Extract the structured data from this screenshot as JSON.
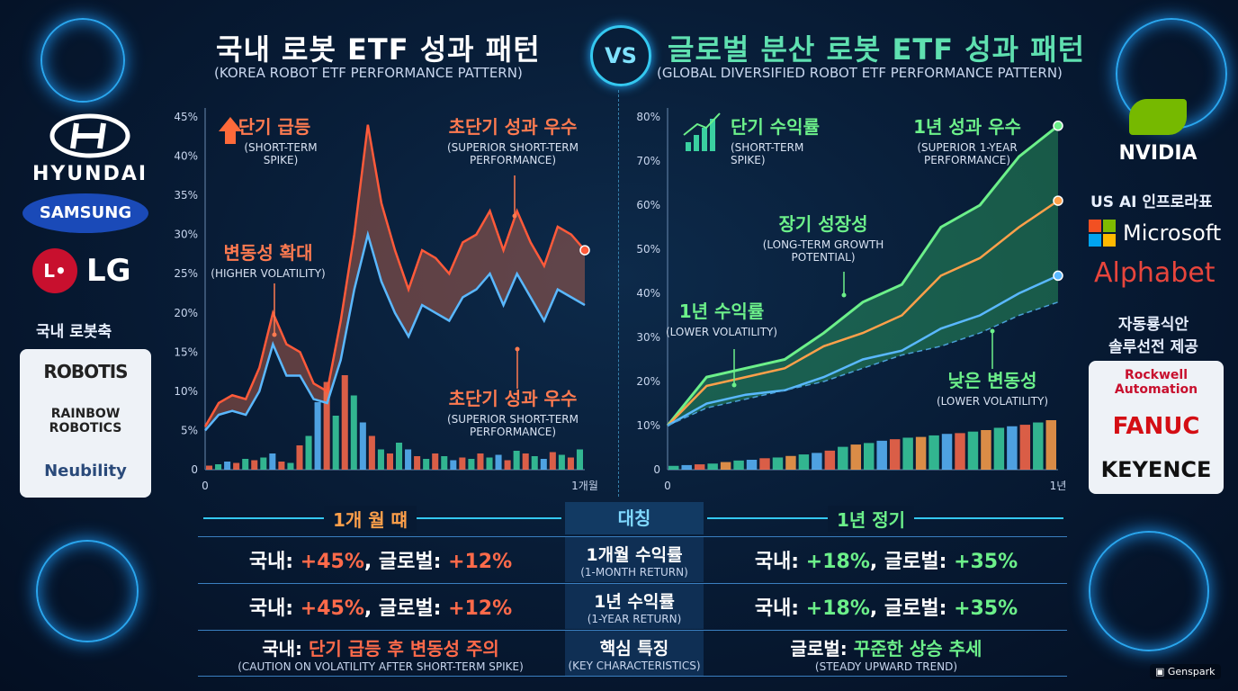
{
  "header": {
    "left_title": "국내 로봇 ETF 성과 패턴",
    "left_subtitle": "(KOREA ROBOT ETF PERFORMANCE PATTERN)",
    "vs": "VS",
    "right_title": "글로벌 분산 로봇 ETF 성과 패턴",
    "right_subtitle": "(GLOBAL DIVERSIFIED ROBOT ETF PERFORMANCE PATTERN)"
  },
  "left_logos": {
    "hyundai": "HYUNDAI",
    "samsung": "SAMSUNG",
    "lg": "LG",
    "group_label": "국내 로봇축",
    "panel": [
      "ROBOTIS",
      "RAINBOW ROBOTICS",
      "Neubility"
    ]
  },
  "right_logos": {
    "nvidia": "NVIDIA",
    "group_label": "US AI 인프로라표",
    "microsoft": "Microsoft",
    "alphabet": "Alphabet",
    "group_label2": "자동룡식안\n솔루선전 제공",
    "panel": [
      "Rockwell Automation",
      "FANUC",
      "KEYENCE"
    ]
  },
  "chart_data": [
    {
      "type": "line",
      "title": "",
      "xlabel": "",
      "ylabel": "",
      "x_tick_labels": [
        "0",
        "1개월"
      ],
      "y_tick_labels": [
        "0",
        "5%",
        "10%",
        "15%",
        "20%",
        "25%",
        "30%",
        "35%",
        "40%",
        "45%"
      ],
      "ylim": [
        0,
        45
      ],
      "grid": false,
      "series": [
        {
          "values": [
            5.5,
            8.5,
            9.5,
            9,
            13,
            20,
            16,
            15,
            11,
            10,
            19,
            30,
            44,
            34,
            28,
            23,
            28,
            27,
            25,
            29,
            30,
            33,
            28,
            33,
            29,
            26,
            31,
            30,
            28
          ]
        },
        {
          "values": [
            5,
            7,
            7.5,
            7,
            10,
            16,
            12,
            12,
            9,
            8.5,
            14,
            23,
            30,
            24,
            20,
            17,
            21,
            20,
            19,
            22,
            23,
            25,
            21,
            25,
            22,
            19,
            23,
            22,
            21
          ]
        }
      ],
      "volume_bars": [
        0.3,
        0.4,
        0.6,
        0.5,
        0.8,
        0.7,
        0.9,
        1.2,
        0.6,
        0.5,
        1.8,
        2.5,
        5,
        6.5,
        4,
        7,
        5.5,
        3.5,
        2.5,
        1.5,
        1.2,
        2,
        1.5,
        1,
        0.8,
        1.2,
        1,
        0.7,
        0.9,
        0.8,
        1.2,
        0.9,
        1.1,
        0.7,
        1.4,
        1.2,
        1,
        0.8,
        1.3,
        1.1,
        0.9,
        1.5
      ],
      "annotations": [
        {
          "title": "단기 급등",
          "sub": "(SHORT-TERM\nSPIKE)"
        },
        {
          "title": "초단기 성과 우수",
          "sub": "(SUPERIOR SHORT-TERM\nPERFORMANCE)"
        },
        {
          "title": "변동성 확대",
          "sub": "(HIGHER VOLATILITY)"
        },
        {
          "title": "초단기 성과 우수",
          "sub": "(SUPERIOR SHORT-TERM\nPERFORMANCE)"
        }
      ]
    },
    {
      "type": "line",
      "title": "",
      "xlabel": "",
      "ylabel": "",
      "x_tick_labels": [
        "0",
        "1년"
      ],
      "y_tick_labels": [
        "0",
        "10%",
        "20%",
        "30%",
        "40%",
        "50%",
        "60%",
        "70%",
        "80%"
      ],
      "ylim": [
        0,
        80
      ],
      "grid": false,
      "series": [
        {
          "values": [
            10,
            21,
            23,
            25,
            31,
            38,
            42,
            55,
            60,
            71,
            78
          ]
        },
        {
          "values": [
            10,
            19,
            21,
            23,
            28,
            31,
            35,
            44,
            48,
            55,
            61
          ]
        },
        {
          "values": [
            10,
            15,
            17,
            18,
            21,
            25,
            27,
            32,
            35,
            40,
            44
          ]
        },
        {
          "values": [
            10,
            14,
            16,
            18,
            20,
            23,
            26,
            28,
            31,
            35,
            38
          ]
        }
      ],
      "volume_bars": [
        0.5,
        0.6,
        0.7,
        0.8,
        1,
        1.2,
        1.3,
        1.5,
        1.6,
        1.8,
        2,
        2.2,
        2.5,
        3,
        3.3,
        3.5,
        3.8,
        4,
        4.2,
        4.3,
        4.5,
        4.7,
        4.8,
        5,
        5.2,
        5.5,
        5.7,
        5.9,
        6.2,
        6.5
      ],
      "annotations": [
        {
          "title": "단기 수익률",
          "sub": "(SHORT-TERM\nSPIKE)"
        },
        {
          "title": "1년 성과 우수",
          "sub": "(SUPERIOR 1-YEAR\nPERFORMANCE)"
        },
        {
          "title": "장기 성장성",
          "sub": "(LONG-TERM GROWTH\nPOTENTIAL)"
        },
        {
          "title": "1년 수익률",
          "sub": "(LOWER VOLATILITY)"
        },
        {
          "title": "낮은 변동성",
          "sub": "(LOWER VOLATILITY)"
        }
      ]
    }
  ],
  "comparison": {
    "left_header": "1개 월 떄",
    "center_header": "대칭",
    "right_header": "1년 정기",
    "rows": [
      {
        "left_prefix": "국내: ",
        "left_val1": "+45%",
        "left_mid": ", 글로벌: ",
        "left_val2": "+12%",
        "center_main": "1개월 수익률",
        "center_sub": "(1-MONTH RETURN)",
        "right_prefix": "국내: ",
        "right_val1": "+18%",
        "right_mid": ", 글로벌: ",
        "right_val2": "+35%"
      },
      {
        "left_prefix": "국내: ",
        "left_val1": "+45%",
        "left_mid": ", 글로벌: ",
        "left_val2": "+12%",
        "center_main": "1년 수익률",
        "center_sub": "(1-YEAR RETURN)",
        "right_prefix": "국내: ",
        "right_val1": "+18%",
        "right_mid": ", 글로벌: ",
        "right_val2": "+35%"
      },
      {
        "left_prefix": "국내: ",
        "left_val1": "단기 급등 후 변동성 주의",
        "left_sub": "(CAUTION ON VOLATILITY AFTER SHORT-TERM SPIKE)",
        "center_main": "핵심 특징",
        "center_sub": "(KEY CHARACTERISTICS)",
        "right_prefix": "글로벌: ",
        "right_val1": "꾸준한 상승 추세",
        "right_sub": "(STEADY UPWARD TREND)"
      }
    ]
  },
  "footer": {
    "brand": "Genspark"
  },
  "colors": {
    "red": "#ff6a4a",
    "green": "#6cf08a",
    "blue": "#5ab8ff",
    "orange": "#ffa04a",
    "accent": "#34c8f0"
  }
}
